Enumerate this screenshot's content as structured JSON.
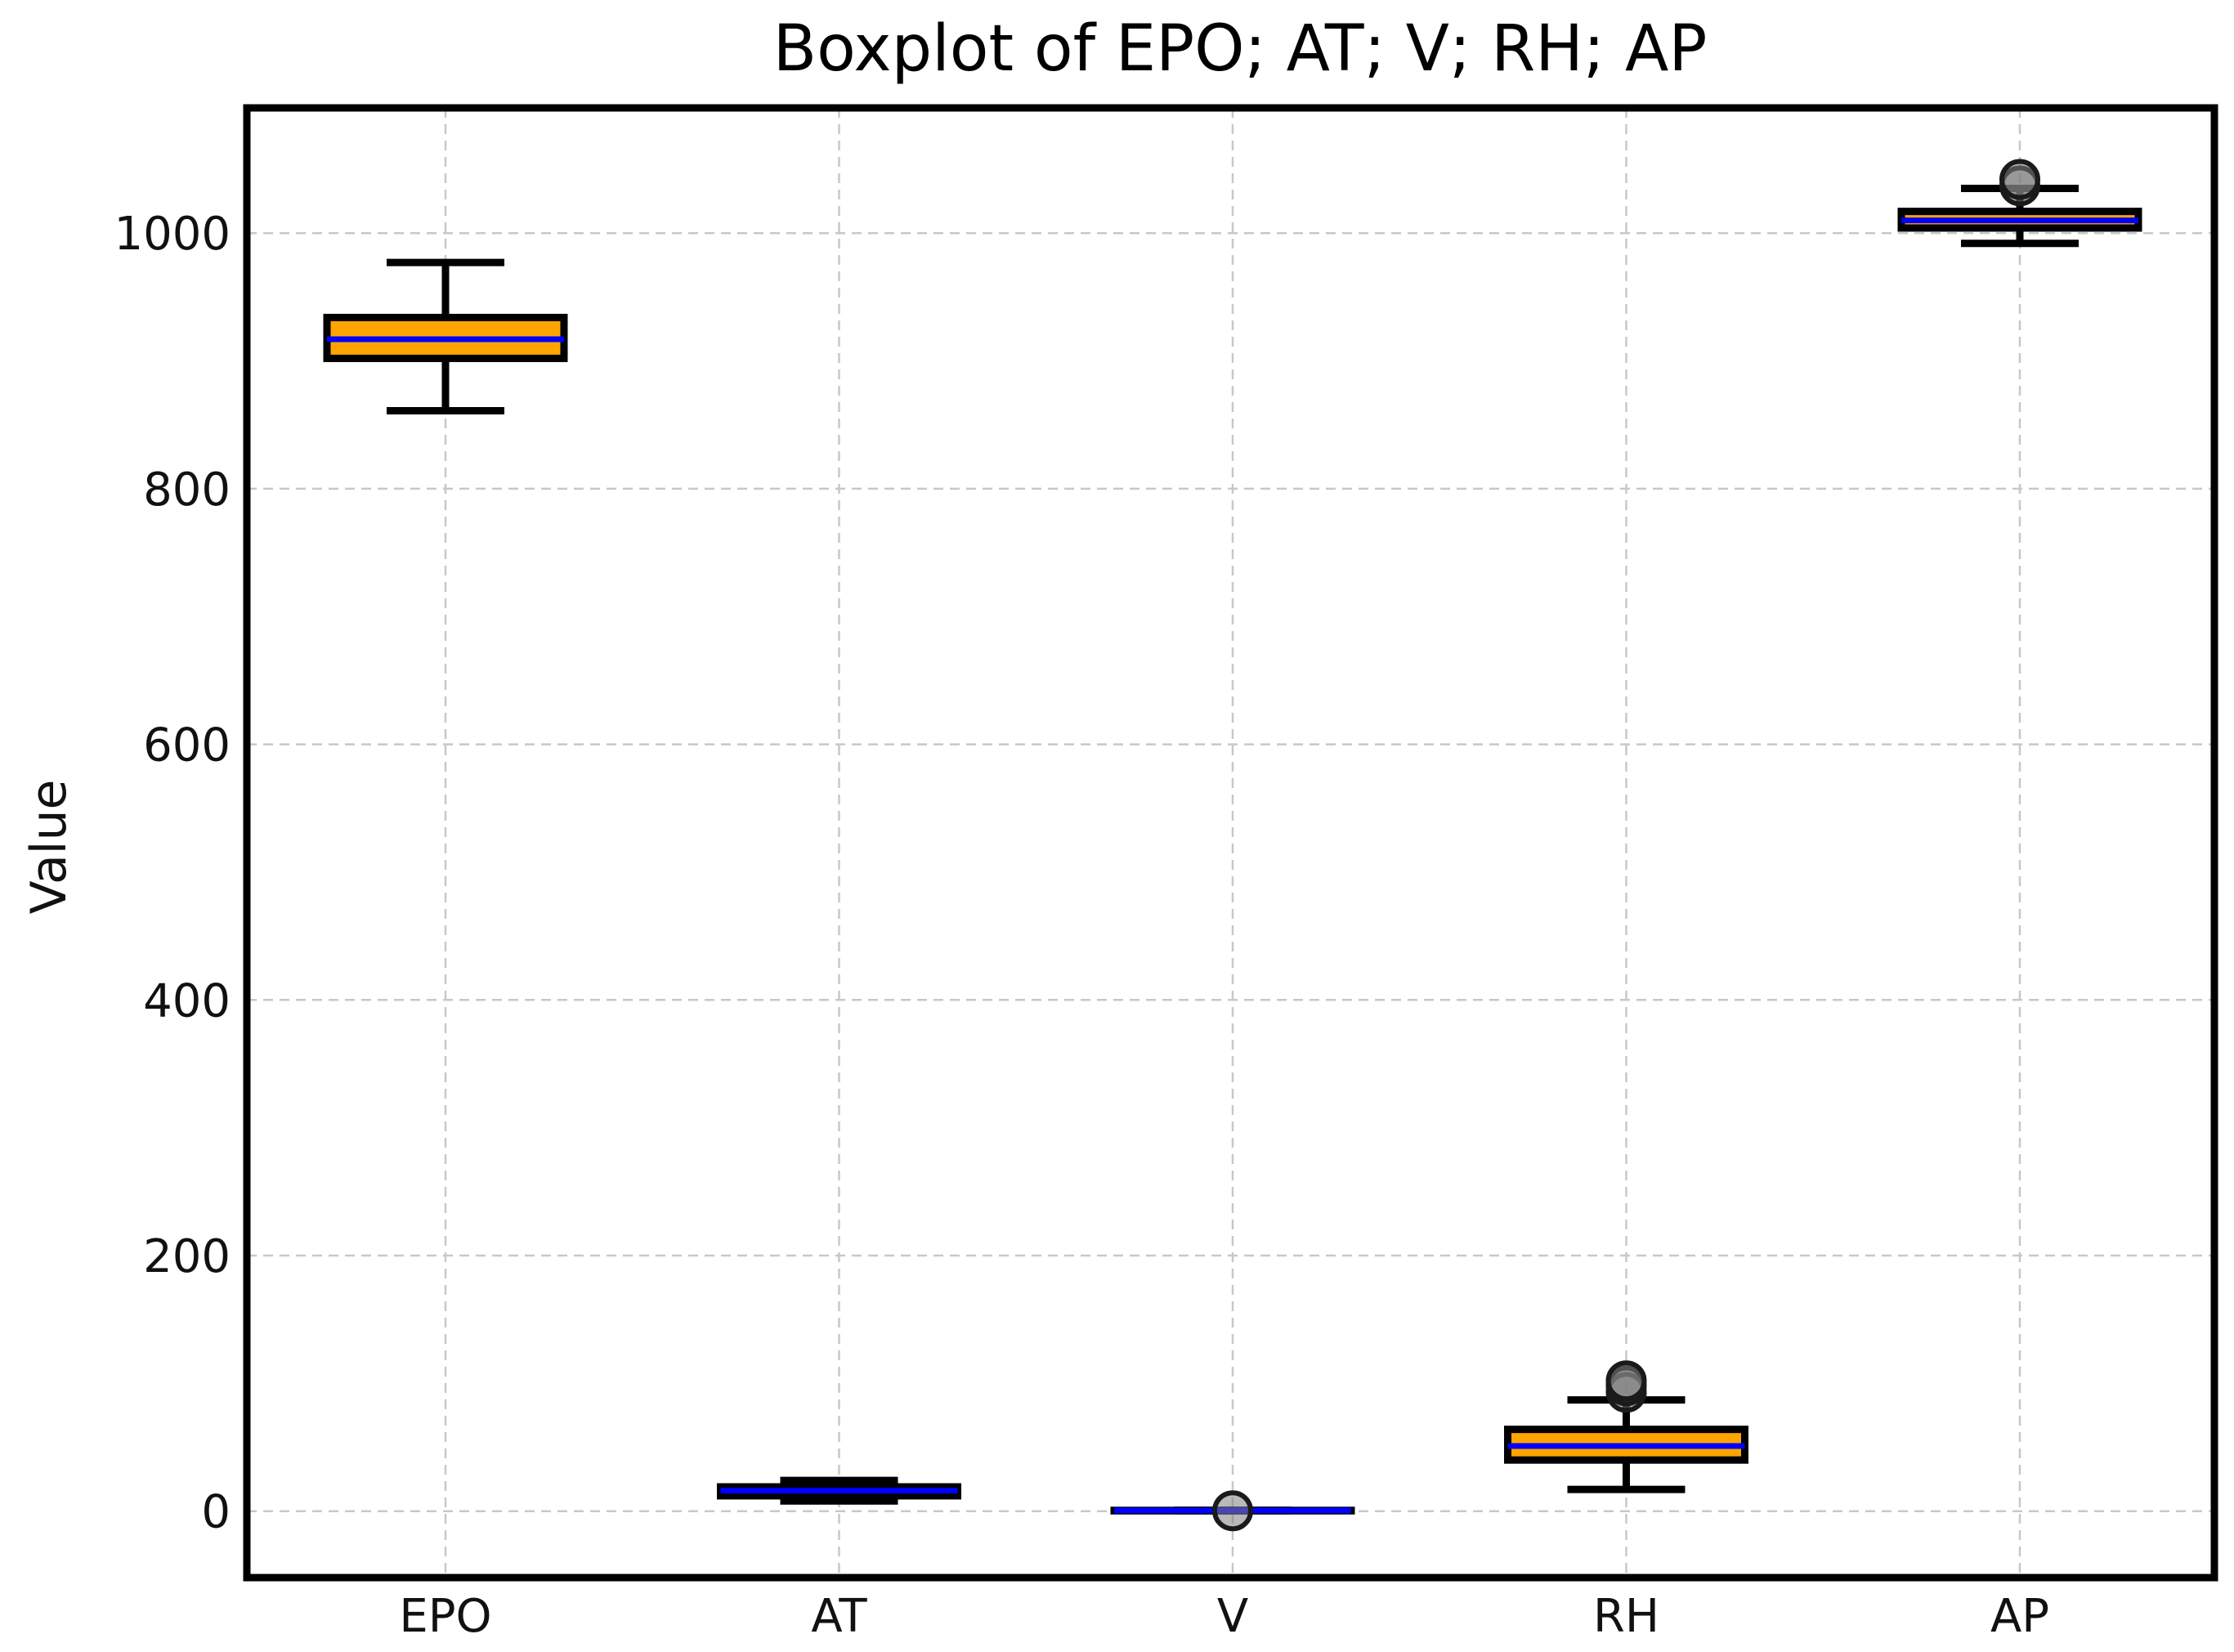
{
  "chart_data": {
    "type": "boxplot",
    "title": "Boxplot of EPO; AT; V; RH; AP",
    "xlabel": "",
    "ylabel": "Value",
    "ylim": [
      -52,
      1098
    ],
    "yticks": [
      0,
      200,
      400,
      600,
      800,
      1000
    ],
    "grid": true,
    "categories": [
      "EPO",
      "AT",
      "V",
      "RH",
      "AP"
    ],
    "boxes": [
      {
        "name": "EPO",
        "whisker_low": 861,
        "q1": 902,
        "median": 917,
        "q3": 934,
        "whisker_high": 977,
        "outliers": []
      },
      {
        "name": "AT",
        "whisker_low": 8,
        "q1": 12,
        "median": 16,
        "q3": 19,
        "whisker_high": 24,
        "outliers": []
      },
      {
        "name": "V",
        "whisker_low": 0.4,
        "q1": 0.5,
        "median": 0.5,
        "q3": 0.6,
        "whisker_high": 0.7,
        "outliers": [
          0.3
        ]
      },
      {
        "name": "RH",
        "whisker_low": 17,
        "q1": 40,
        "median": 51,
        "q3": 64,
        "whisker_high": 87,
        "outliers": [
          93,
          98,
          102
        ]
      },
      {
        "name": "AP",
        "whisker_low": 992,
        "q1": 1004,
        "median": 1010,
        "q3": 1017,
        "whisker_high": 1035,
        "outliers": [
          1037,
          1042
        ]
      }
    ],
    "colors": {
      "box_fill": "#FFA500",
      "box_edge": "#000000",
      "median": "#0000FF",
      "whisker": "#000000",
      "outlier_fill": "#808080",
      "outlier_edge": "#1a1a1a"
    }
  }
}
